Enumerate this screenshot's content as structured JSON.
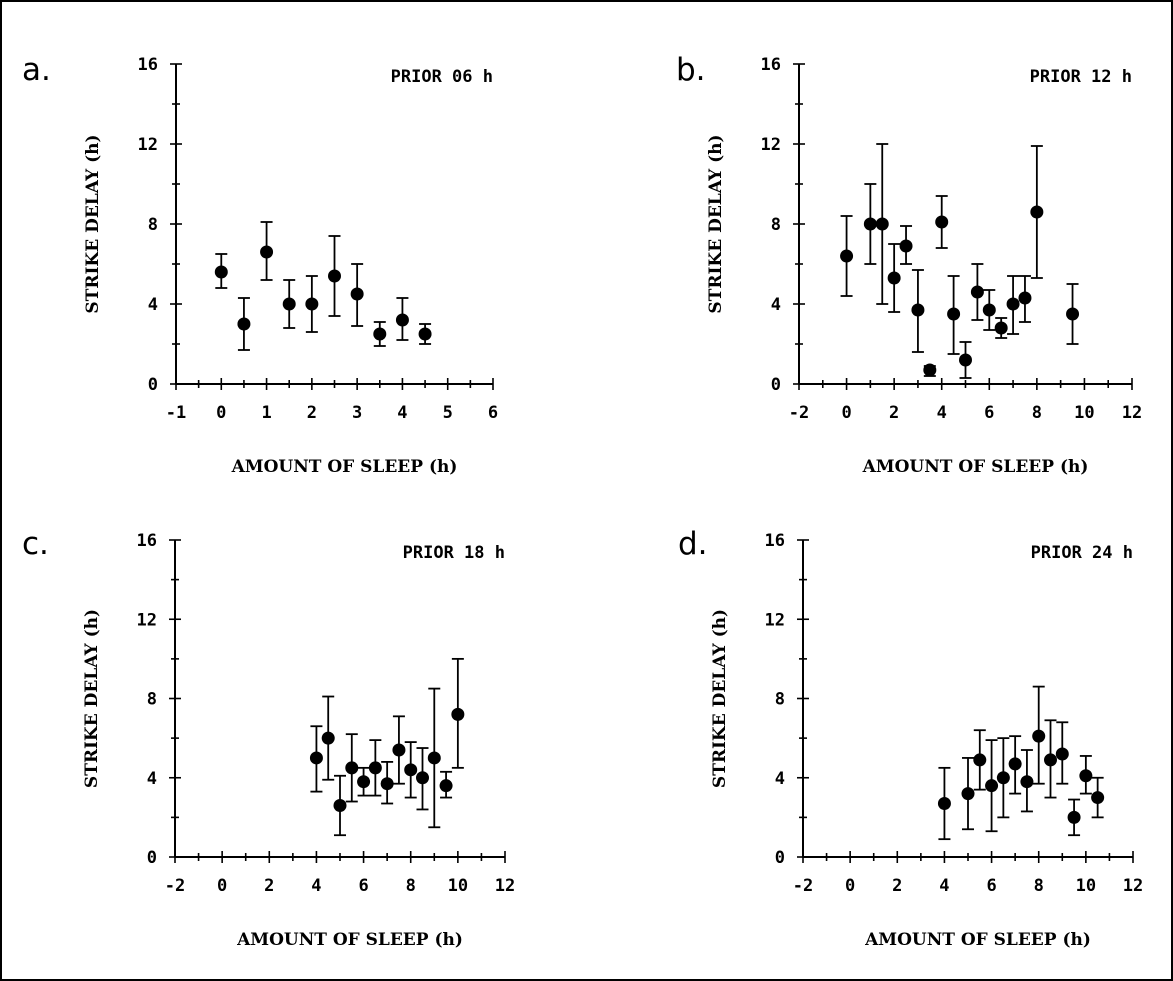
{
  "chart_data": [
    {
      "type": "scatter",
      "panel_letter": "a.",
      "title": "PRIOR 06 h",
      "xlabel": "AMOUNT OF SLEEP (h)",
      "ylabel": "STRIKE DELAY (h)",
      "xlim": [
        -1,
        6
      ],
      "ylim": [
        0,
        16
      ],
      "xticks": [
        "-1",
        "0",
        "1",
        "2",
        "3",
        "4",
        "5",
        "6"
      ],
      "yticks": [
        "0",
        "4",
        "8",
        "12",
        "16"
      ],
      "points": [
        {
          "x": 0,
          "y": 5.6,
          "low": 4.8,
          "high": 6.5
        },
        {
          "x": 0.5,
          "y": 3.0,
          "low": 1.7,
          "high": 4.3
        },
        {
          "x": 1,
          "y": 6.6,
          "low": 5.2,
          "high": 8.1
        },
        {
          "x": 1.5,
          "y": 4.0,
          "low": 2.8,
          "high": 5.2
        },
        {
          "x": 2,
          "y": 4.0,
          "low": 2.6,
          "high": 5.4
        },
        {
          "x": 2.5,
          "y": 5.4,
          "low": 3.4,
          "high": 7.4
        },
        {
          "x": 3,
          "y": 4.5,
          "low": 2.9,
          "high": 6.0
        },
        {
          "x": 3.5,
          "y": 2.5,
          "low": 1.9,
          "high": 3.1
        },
        {
          "x": 4,
          "y": 3.2,
          "low": 2.2,
          "high": 4.3
        },
        {
          "x": 4.5,
          "y": 2.5,
          "low": 2.0,
          "high": 3.0
        }
      ]
    },
    {
      "type": "scatter",
      "panel_letter": "b.",
      "title": "PRIOR 12 h",
      "xlabel": "AMOUNT OF SLEEP (h)",
      "ylabel": "STRIKE DELAY (h)",
      "xlim": [
        -2,
        12
      ],
      "ylim": [
        0,
        16
      ],
      "xticks": [
        "-2",
        "0",
        "2",
        "4",
        "6",
        "8",
        "10",
        "12"
      ],
      "yticks": [
        "0",
        "4",
        "8",
        "12",
        "16"
      ],
      "points": [
        {
          "x": 0,
          "y": 6.4,
          "low": 4.4,
          "high": 8.4
        },
        {
          "x": 1,
          "y": 8.0,
          "low": 6.0,
          "high": 10.0
        },
        {
          "x": 1.5,
          "y": 8.0,
          "low": 4.0,
          "high": 12.0
        },
        {
          "x": 2,
          "y": 5.3,
          "low": 3.6,
          "high": 7.0
        },
        {
          "x": 2.5,
          "y": 6.9,
          "low": 6.0,
          "high": 7.9
        },
        {
          "x": 3,
          "y": 3.7,
          "low": 1.6,
          "high": 5.7
        },
        {
          "x": 3.5,
          "y": 0.7,
          "low": 0.4,
          "high": 0.9
        },
        {
          "x": 4,
          "y": 8.1,
          "low": 6.8,
          "high": 9.4
        },
        {
          "x": 4.5,
          "y": 3.5,
          "low": 1.5,
          "high": 5.4
        },
        {
          "x": 5,
          "y": 1.2,
          "low": 0.3,
          "high": 2.1
        },
        {
          "x": 5.5,
          "y": 4.6,
          "low": 3.2,
          "high": 6.0
        },
        {
          "x": 6,
          "y": 3.7,
          "low": 2.7,
          "high": 4.7
        },
        {
          "x": 6.5,
          "y": 2.8,
          "low": 2.3,
          "high": 3.3
        },
        {
          "x": 7,
          "y": 4.0,
          "low": 2.5,
          "high": 5.4
        },
        {
          "x": 7.5,
          "y": 4.3,
          "low": 3.1,
          "high": 5.4
        },
        {
          "x": 8,
          "y": 8.6,
          "low": 5.3,
          "high": 11.9
        },
        {
          "x": 9.5,
          "y": 3.5,
          "low": 2.0,
          "high": 5.0
        }
      ]
    },
    {
      "type": "scatter",
      "panel_letter": "c.",
      "title": "PRIOR 18 h",
      "xlabel": "AMOUNT OF SLEEP (h)",
      "ylabel": "STRIKE DELAY (h)",
      "xlim": [
        -2,
        12
      ],
      "ylim": [
        0,
        16
      ],
      "xticks": [
        "-2",
        "0",
        "2",
        "4",
        "6",
        "8",
        "10",
        "12"
      ],
      "yticks": [
        "0",
        "4",
        "8",
        "12",
        "16"
      ],
      "points": [
        {
          "x": 4,
          "y": 5.0,
          "low": 3.3,
          "high": 6.6
        },
        {
          "x": 4.5,
          "y": 6.0,
          "low": 3.9,
          "high": 8.1
        },
        {
          "x": 5,
          "y": 2.6,
          "low": 1.1,
          "high": 4.1
        },
        {
          "x": 5.5,
          "y": 4.5,
          "low": 2.8,
          "high": 6.2
        },
        {
          "x": 6,
          "y": 3.8,
          "low": 3.1,
          "high": 4.5
        },
        {
          "x": 6.5,
          "y": 4.5,
          "low": 3.1,
          "high": 5.9
        },
        {
          "x": 7,
          "y": 3.7,
          "low": 2.7,
          "high": 4.8
        },
        {
          "x": 7.5,
          "y": 5.4,
          "low": 3.7,
          "high": 7.1
        },
        {
          "x": 8,
          "y": 4.4,
          "low": 3.0,
          "high": 5.8
        },
        {
          "x": 8.5,
          "y": 4.0,
          "low": 2.4,
          "high": 5.5
        },
        {
          "x": 9,
          "y": 5.0,
          "low": 1.5,
          "high": 8.5
        },
        {
          "x": 9.5,
          "y": 3.6,
          "low": 3.0,
          "high": 4.3
        },
        {
          "x": 10,
          "y": 7.2,
          "low": 4.5,
          "high": 10.0
        }
      ]
    },
    {
      "type": "scatter",
      "panel_letter": "d.",
      "title": "PRIOR 24 h",
      "xlabel": "AMOUNT OF SLEEP (h)",
      "ylabel": "STRIKE DELAY (h)",
      "xlim": [
        -2,
        12
      ],
      "ylim": [
        0,
        16
      ],
      "xticks": [
        "-2",
        "0",
        "2",
        "4",
        "6",
        "8",
        "10",
        "12"
      ],
      "yticks": [
        "0",
        "4",
        "8",
        "12",
        "16"
      ],
      "points": [
        {
          "x": 4,
          "y": 2.7,
          "low": 0.9,
          "high": 4.5
        },
        {
          "x": 5,
          "y": 3.2,
          "low": 1.4,
          "high": 5.0
        },
        {
          "x": 5.5,
          "y": 4.9,
          "low": 3.4,
          "high": 6.4
        },
        {
          "x": 6,
          "y": 3.6,
          "low": 1.3,
          "high": 5.9
        },
        {
          "x": 6.5,
          "y": 4.0,
          "low": 2.0,
          "high": 6.0
        },
        {
          "x": 7,
          "y": 4.7,
          "low": 3.2,
          "high": 6.1
        },
        {
          "x": 7.5,
          "y": 3.8,
          "low": 2.3,
          "high": 5.4
        },
        {
          "x": 8,
          "y": 6.1,
          "low": 3.7,
          "high": 8.6
        },
        {
          "x": 8.5,
          "y": 4.9,
          "low": 3.0,
          "high": 6.9
        },
        {
          "x": 9,
          "y": 5.2,
          "low": 3.7,
          "high": 6.8
        },
        {
          "x": 9.5,
          "y": 2.0,
          "low": 1.1,
          "high": 2.9
        },
        {
          "x": 10,
          "y": 4.1,
          "low": 3.2,
          "high": 5.1
        },
        {
          "x": 10.5,
          "y": 3.0,
          "low": 2.0,
          "high": 4.0
        }
      ]
    }
  ]
}
